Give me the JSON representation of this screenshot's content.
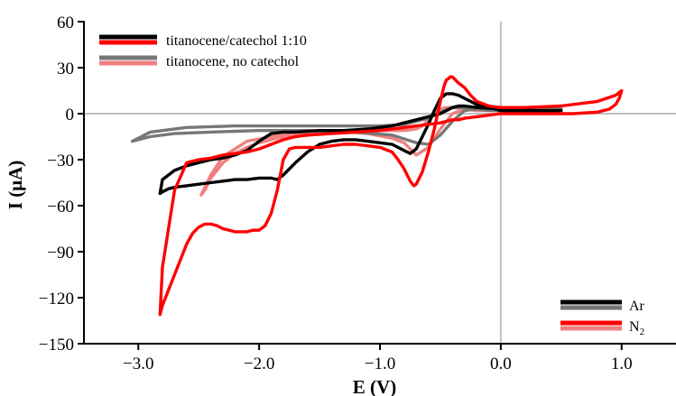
{
  "chart_data": {
    "type": "line",
    "xlabel": "E (V)",
    "ylabel": "I (μA)",
    "xlim": [
      -3.45,
      1.45
    ],
    "ylim": [
      -150,
      60
    ],
    "x_ticks": [
      -3.0,
      -2.0,
      -1.0,
      0.0,
      1.0
    ],
    "x_tick_labels": [
      "−3.0",
      "−2.0",
      "−1.0",
      "0.0",
      "1.0"
    ],
    "y_ticks": [
      -150,
      -120,
      -90,
      -60,
      -30,
      0,
      30,
      60
    ],
    "y_tick_labels": [
      "−150",
      "−120",
      "−90",
      "−60",
      "−30",
      "0",
      "30",
      "60"
    ],
    "reference_lines": {
      "x": 0,
      "y": 0,
      "color": "#c0c0c0"
    },
    "legend_top": [
      {
        "label": "titanocene/catechol 1:10",
        "colors": [
          "#000000",
          "#ff0000"
        ]
      },
      {
        "label": "titanocene, no catechol",
        "colors": [
          "#777777",
          "#f08080"
        ]
      }
    ],
    "legend_bottom": [
      {
        "label": "Ar",
        "sub": "",
        "colors": [
          "#000000",
          "#777777"
        ]
      },
      {
        "label": "N",
        "sub": "2",
        "colors": [
          "#ff0000",
          "#f08080"
        ]
      }
    ],
    "series": [
      {
        "name": "titanocene, no catechol (N2)",
        "color": "#f08080",
        "x": [
          -2.48,
          -2.45,
          -2.4,
          -2.3,
          -2.2,
          -2.1,
          -2.0,
          -1.9,
          -1.8,
          -1.7,
          -1.6,
          -1.5,
          -1.3,
          -1.1,
          -0.9,
          -0.8,
          -0.75,
          -0.7,
          -0.6,
          -0.5,
          -0.4,
          -0.3,
          -0.2,
          -0.1,
          0.0,
          0.3,
          0.5,
          0.3,
          0.0,
          -0.1,
          -0.2,
          -0.3,
          -0.4,
          -0.45,
          -0.5,
          -0.55,
          -0.6,
          -0.65,
          -0.7,
          -0.8,
          -1.0,
          -1.3,
          -1.6,
          -1.9,
          -2.1,
          -2.3,
          -2.4,
          -2.48
        ],
        "y": [
          -53,
          -50,
          -42,
          -32,
          -26,
          -22,
          -19,
          -17,
          -15,
          -13.5,
          -13,
          -12.5,
          -12,
          -13,
          -16,
          -19,
          -23,
          -27,
          -22,
          -10,
          0,
          3,
          4,
          4,
          4,
          3,
          3,
          2,
          2,
          2,
          2,
          3,
          4,
          4,
          3,
          0,
          -4,
          -8,
          -10,
          -11,
          -11,
          -11,
          -12,
          -15,
          -18,
          -28,
          -40,
          -53
        ]
      },
      {
        "name": "titanocene, no catechol (Ar)",
        "color": "#777777",
        "x": [
          -3.05,
          -3.0,
          -2.9,
          -2.7,
          -2.4,
          -2.0,
          -1.6,
          -1.2,
          -0.9,
          -0.7,
          -0.6,
          -0.5,
          -0.4,
          -0.3,
          -0.1,
          0.0,
          0.3,
          0.5,
          0.3,
          0.0,
          -0.1,
          -0.2,
          -0.3,
          -0.35,
          -0.4,
          -0.5,
          -0.6,
          -0.7,
          -0.8,
          -1.0,
          -1.4,
          -1.8,
          -2.2,
          -2.6,
          -2.9,
          -3.05
        ],
        "y": [
          -18,
          -17,
          -15,
          -13,
          -12,
          -11,
          -11,
          -12,
          -14,
          -19,
          -20,
          -14,
          -5,
          2,
          4,
          4,
          3,
          3,
          2,
          2,
          2,
          3,
          4,
          4,
          4,
          1,
          -3,
          -5,
          -7,
          -8,
          -8,
          -8,
          -8,
          -9,
          -12,
          -18
        ]
      },
      {
        "name": "titanocene/catechol 1:10 (Ar)",
        "color": "#000000",
        "x": [
          -2.82,
          -2.8,
          -2.75,
          -2.7,
          -2.6,
          -2.5,
          -2.4,
          -2.3,
          -2.2,
          -2.1,
          -2.0,
          -1.95,
          -1.9,
          -1.85,
          -1.8,
          -1.7,
          -1.6,
          -1.5,
          -1.4,
          -1.3,
          -1.2,
          -1.1,
          -1.0,
          -0.9,
          -0.8,
          -0.75,
          -0.7,
          -0.65,
          -0.6,
          -0.55,
          -0.5,
          -0.45,
          -0.4,
          -0.35,
          -0.3,
          -0.2,
          0.0,
          0.3,
          0.5,
          0.3,
          0.0,
          -0.2,
          -0.3,
          -0.35,
          -0.4,
          -0.45,
          -0.5,
          -0.6,
          -0.7,
          -0.8,
          -0.9,
          -1.0,
          -1.1,
          -1.3,
          -1.5,
          -1.7,
          -1.8,
          -1.9,
          -2.0,
          -2.05,
          -2.1,
          -2.2,
          -2.3,
          -2.4,
          -2.5,
          -2.6,
          -2.7,
          -2.8,
          -2.82
        ],
        "y": [
          -52,
          -51,
          -49,
          -48,
          -47,
          -46,
          -45,
          -44,
          -43,
          -43,
          -42,
          -42,
          -42,
          -43,
          -40,
          -32,
          -25,
          -20,
          -18,
          -17,
          -17,
          -18,
          -19,
          -20,
          -24,
          -26,
          -23,
          -15,
          -7,
          2,
          10,
          13,
          13,
          12,
          10,
          6,
          2,
          1,
          2,
          2,
          3,
          4,
          5,
          5,
          4,
          2,
          0,
          -2,
          -4,
          -6,
          -8,
          -9,
          -10,
          -11,
          -11,
          -12,
          -12,
          -13,
          -18,
          -21,
          -24,
          -27,
          -29,
          -30,
          -32,
          -34,
          -37,
          -43,
          -52
        ]
      },
      {
        "name": "titanocene/catechol 1:10 (N2)",
        "color": "#ff0000",
        "x": [
          -2.82,
          -2.8,
          -2.75,
          -2.7,
          -2.65,
          -2.6,
          -2.55,
          -2.5,
          -2.45,
          -2.4,
          -2.35,
          -2.3,
          -2.2,
          -2.1,
          -2.05,
          -2.0,
          -1.95,
          -1.9,
          -1.85,
          -1.8,
          -1.75,
          -1.7,
          -1.6,
          -1.5,
          -1.4,
          -1.3,
          -1.2,
          -1.1,
          -1.0,
          -0.9,
          -0.85,
          -0.8,
          -0.75,
          -0.72,
          -0.7,
          -0.65,
          -0.6,
          -0.55,
          -0.5,
          -0.47,
          -0.45,
          -0.43,
          -0.42,
          -0.4,
          -0.35,
          -0.3,
          -0.25,
          -0.2,
          -0.1,
          0.0,
          0.2,
          0.5,
          0.8,
          0.95,
          1.0,
          0.98,
          0.95,
          0.9,
          0.8,
          0.6,
          0.4,
          0.2,
          0.0,
          -0.1,
          -0.2,
          -0.3,
          -0.35,
          -0.4,
          -0.45,
          -0.5,
          -0.6,
          -0.7,
          -0.8,
          -0.9,
          -1.0,
          -1.2,
          -1.4,
          -1.6,
          -1.7,
          -1.8,
          -1.9,
          -2.0,
          -2.1,
          -2.2,
          -2.3,
          -2.4,
          -2.5,
          -2.6,
          -2.7,
          -2.8,
          -2.82
        ],
        "y": [
          -131,
          -125,
          -115,
          -105,
          -95,
          -85,
          -78,
          -74,
          -72,
          -72,
          -73,
          -75,
          -77,
          -77,
          -76,
          -76,
          -73,
          -65,
          -50,
          -30,
          -23,
          -22,
          -22,
          -22,
          -21,
          -20,
          -20,
          -21,
          -22,
          -25,
          -30,
          -36,
          -44,
          -47,
          -46,
          -38,
          -25,
          -10,
          8,
          18,
          22,
          23,
          24,
          24,
          20,
          17,
          12,
          8,
          5,
          4,
          4,
          5,
          8,
          12,
          15,
          10,
          6,
          3,
          1,
          0,
          0,
          0,
          0,
          -1,
          -2,
          -3,
          -4,
          -4,
          -5,
          -6,
          -7,
          -8,
          -9,
          -10,
          -11,
          -12,
          -13,
          -14,
          -15,
          -17,
          -20,
          -23,
          -25,
          -26,
          -27,
          -29,
          -30,
          -32,
          -50,
          -100,
          -131
        ]
      }
    ]
  }
}
